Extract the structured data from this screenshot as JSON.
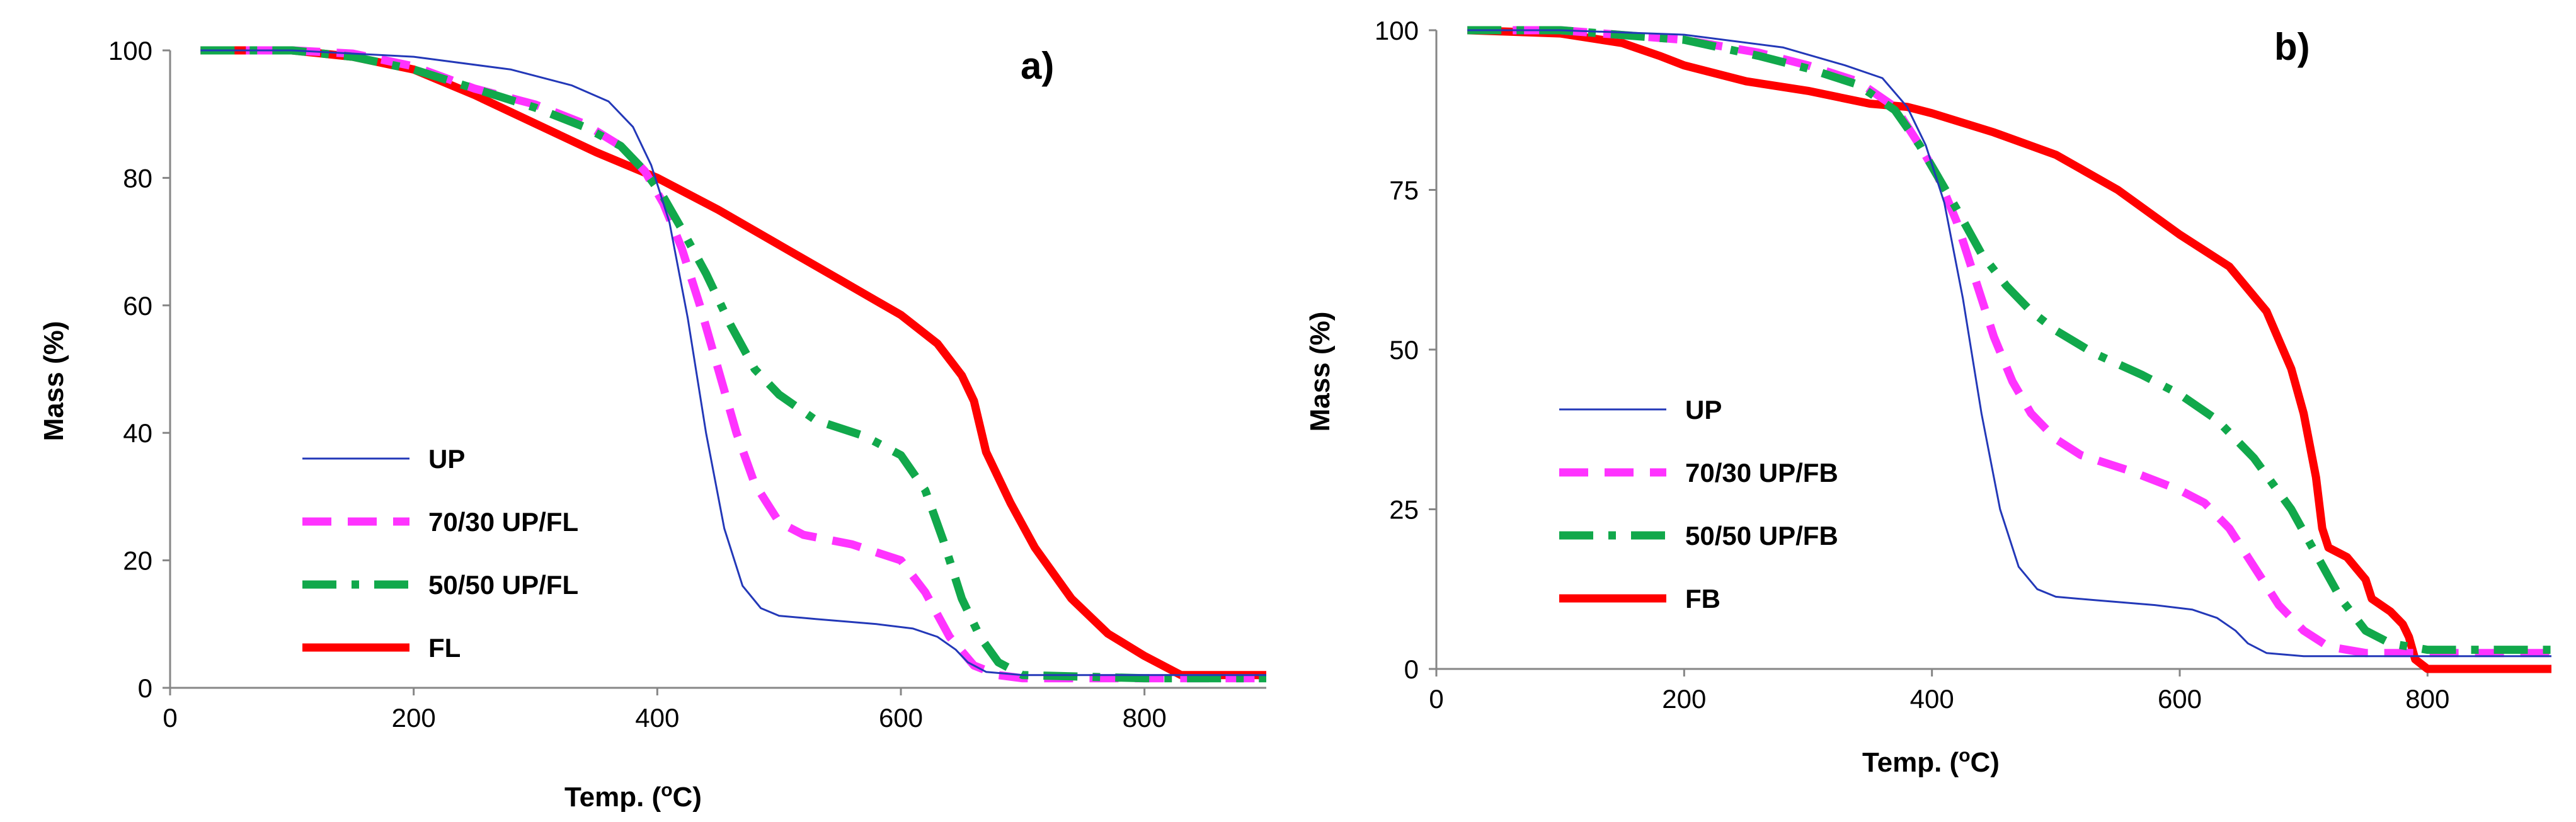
{
  "chart_data": [
    {
      "type": "line",
      "panel_label": "a)",
      "xlabel_main": "Temp. (",
      "xlabel_sup": "o",
      "xlabel_end": "C)",
      "ylabel": "Mass (%)",
      "xlim": [
        0,
        900
      ],
      "ylim": [
        0,
        100
      ],
      "x_ticks": [
        0,
        200,
        400,
        600,
        800
      ],
      "y_ticks": [
        0,
        20,
        40,
        60,
        80,
        100
      ],
      "legend_position": "left-middle",
      "series": [
        {
          "name": "UP",
          "color": "#2338B8",
          "style": "thin-solid",
          "points": [
            [
              25,
              100
            ],
            [
              100,
              100
            ],
            [
              200,
              99
            ],
            [
              280,
              97
            ],
            [
              330,
              94.5
            ],
            [
              360,
              92
            ],
            [
              380,
              88
            ],
            [
              395,
              82
            ],
            [
              410,
              73
            ],
            [
              425,
              58
            ],
            [
              440,
              40
            ],
            [
              455,
              25
            ],
            [
              470,
              16
            ],
            [
              485,
              12.5
            ],
            [
              500,
              11.3
            ],
            [
              530,
              10.8
            ],
            [
              580,
              10
            ],
            [
              610,
              9.3
            ],
            [
              630,
              8
            ],
            [
              645,
              6
            ],
            [
              655,
              4
            ],
            [
              670,
              2.5
            ],
            [
              700,
              2
            ],
            [
              800,
              2
            ],
            [
              900,
              2
            ]
          ]
        },
        {
          "name": "70/30 UP/FL",
          "color": "#FF33FF",
          "style": "dashed",
          "points": [
            [
              25,
              100
            ],
            [
              100,
              100
            ],
            [
              150,
              99.5
            ],
            [
              200,
              97.5
            ],
            [
              250,
              94
            ],
            [
              300,
              91.5
            ],
            [
              340,
              88.5
            ],
            [
              370,
              85
            ],
            [
              390,
              81
            ],
            [
              405,
              76
            ],
            [
              420,
              69
            ],
            [
              435,
              60
            ],
            [
              450,
              50
            ],
            [
              465,
              40
            ],
            [
              480,
              32
            ],
            [
              500,
              26
            ],
            [
              520,
              24
            ],
            [
              560,
              22.5
            ],
            [
              600,
              20
            ],
            [
              620,
              15
            ],
            [
              640,
              8
            ],
            [
              660,
              3.5
            ],
            [
              680,
              2
            ],
            [
              700,
              1.5
            ],
            [
              800,
              1.5
            ],
            [
              900,
              1.5
            ]
          ]
        },
        {
          "name": "50/50 UP/FL",
          "color": "#11A84B",
          "style": "dash-dot",
          "points": [
            [
              25,
              100
            ],
            [
              100,
              100
            ],
            [
              150,
              99
            ],
            [
              200,
              97
            ],
            [
              250,
              94
            ],
            [
              300,
              91
            ],
            [
              340,
              88
            ],
            [
              370,
              85
            ],
            [
              390,
              81
            ],
            [
              405,
              77
            ],
            [
              420,
              72
            ],
            [
              440,
              65
            ],
            [
              460,
              57
            ],
            [
              480,
              50
            ],
            [
              500,
              46
            ],
            [
              530,
              42
            ],
            [
              570,
              39.5
            ],
            [
              600,
              36.5
            ],
            [
              620,
              31
            ],
            [
              635,
              23
            ],
            [
              650,
              14
            ],
            [
              665,
              8
            ],
            [
              680,
              4
            ],
            [
              700,
              2
            ],
            [
              800,
              1.5
            ],
            [
              900,
              1.5
            ]
          ]
        },
        {
          "name": "FL",
          "color": "#FF0000",
          "style": "thick-solid",
          "points": [
            [
              25,
              100
            ],
            [
              100,
              100
            ],
            [
              150,
              99
            ],
            [
              200,
              97
            ],
            [
              250,
              93
            ],
            [
              300,
              88.5
            ],
            [
              350,
              84
            ],
            [
              400,
              80
            ],
            [
              450,
              75
            ],
            [
              500,
              69.5
            ],
            [
              550,
              64
            ],
            [
              600,
              58.5
            ],
            [
              630,
              54
            ],
            [
              650,
              49
            ],
            [
              660,
              45
            ],
            [
              670,
              37
            ],
            [
              690,
              29
            ],
            [
              710,
              22
            ],
            [
              740,
              14
            ],
            [
              770,
              8.5
            ],
            [
              800,
              5
            ],
            [
              830,
              2
            ],
            [
              860,
              2
            ],
            [
              900,
              2
            ]
          ]
        }
      ]
    },
    {
      "type": "line",
      "panel_label": "b)",
      "xlabel_main": "Temp. (",
      "xlabel_sup": "o",
      "xlabel_end": "C)",
      "ylabel": "Mass (%)",
      "xlim": [
        0,
        900
      ],
      "ylim": [
        0,
        100
      ],
      "x_ticks": [
        0,
        200,
        400,
        600,
        800
      ],
      "y_ticks": [
        0,
        25,
        50,
        75,
        100
      ],
      "legend_position": "left-middle",
      "series": [
        {
          "name": "UP",
          "color": "#2338B8",
          "style": "thin-solid",
          "points": [
            [
              25,
              100
            ],
            [
              100,
              100
            ],
            [
              200,
              99.3
            ],
            [
              280,
              97.3
            ],
            [
              330,
              94.5
            ],
            [
              360,
              92.5
            ],
            [
              380,
              88
            ],
            [
              395,
              82
            ],
            [
              410,
              73
            ],
            [
              425,
              58
            ],
            [
              440,
              40
            ],
            [
              455,
              25
            ],
            [
              470,
              16
            ],
            [
              485,
              12.5
            ],
            [
              500,
              11.3
            ],
            [
              530,
              10.8
            ],
            [
              580,
              10
            ],
            [
              610,
              9.3
            ],
            [
              630,
              8
            ],
            [
              645,
              6
            ],
            [
              655,
              4
            ],
            [
              670,
              2.5
            ],
            [
              700,
              2
            ],
            [
              800,
              2
            ],
            [
              900,
              2
            ]
          ]
        },
        {
          "name": "70/30 UP/FB",
          "color": "#FF33FF",
          "style": "dashed",
          "points": [
            [
              25,
              100
            ],
            [
              100,
              100
            ],
            [
              200,
              98.5
            ],
            [
              260,
              96.5
            ],
            [
              300,
              94.5
            ],
            [
              340,
              92
            ],
            [
              370,
              88
            ],
            [
              390,
              82
            ],
            [
              405,
              77
            ],
            [
              420,
              70
            ],
            [
              435,
              61
            ],
            [
              450,
              52
            ],
            [
              465,
              45
            ],
            [
              480,
              40
            ],
            [
              500,
              36
            ],
            [
              520,
              33.5
            ],
            [
              560,
              31
            ],
            [
              600,
              28
            ],
            [
              620,
              26
            ],
            [
              640,
              22
            ],
            [
              660,
              16
            ],
            [
              680,
              10
            ],
            [
              700,
              6
            ],
            [
              720,
              3.5
            ],
            [
              750,
              2.5
            ],
            [
              800,
              2.5
            ],
            [
              900,
              2.5
            ]
          ]
        },
        {
          "name": "50/50 UP/FB",
          "color": "#11A84B",
          "style": "dash-dot",
          "points": [
            [
              25,
              100
            ],
            [
              100,
              100
            ],
            [
              200,
              98.5
            ],
            [
              260,
              96
            ],
            [
              300,
              94
            ],
            [
              340,
              91.5
            ],
            [
              370,
              87.5
            ],
            [
              390,
              82
            ],
            [
              405,
              77
            ],
            [
              420,
              72
            ],
            [
              440,
              65
            ],
            [
              460,
              60
            ],
            [
              480,
              56
            ],
            [
              500,
              53
            ],
            [
              530,
              49.5
            ],
            [
              570,
              46
            ],
            [
              600,
              43
            ],
            [
              630,
              39
            ],
            [
              660,
              33
            ],
            [
              690,
              25
            ],
            [
              710,
              18
            ],
            [
              730,
              11
            ],
            [
              750,
              6
            ],
            [
              770,
              4
            ],
            [
              800,
              3
            ],
            [
              900,
              3
            ]
          ]
        },
        {
          "name": "FB",
          "color": "#FF0000",
          "style": "thick-solid",
          "points": [
            [
              25,
              100
            ],
            [
              100,
              99.5
            ],
            [
              150,
              98
            ],
            [
              180,
              96
            ],
            [
              200,
              94.5
            ],
            [
              250,
              92
            ],
            [
              300,
              90.5
            ],
            [
              350,
              88.5
            ],
            [
              380,
              88
            ],
            [
              400,
              87
            ],
            [
              450,
              84
            ],
            [
              500,
              80.5
            ],
            [
              550,
              75
            ],
            [
              600,
              68
            ],
            [
              640,
              63
            ],
            [
              670,
              56
            ],
            [
              690,
              47
            ],
            [
              700,
              40
            ],
            [
              710,
              30
            ],
            [
              715,
              22
            ],
            [
              720,
              19
            ],
            [
              735,
              17.5
            ],
            [
              750,
              14
            ],
            [
              755,
              11
            ],
            [
              770,
              9
            ],
            [
              780,
              7
            ],
            [
              785,
              5
            ],
            [
              790,
              1.5
            ],
            [
              800,
              0
            ],
            [
              900,
              0
            ]
          ]
        }
      ]
    }
  ]
}
